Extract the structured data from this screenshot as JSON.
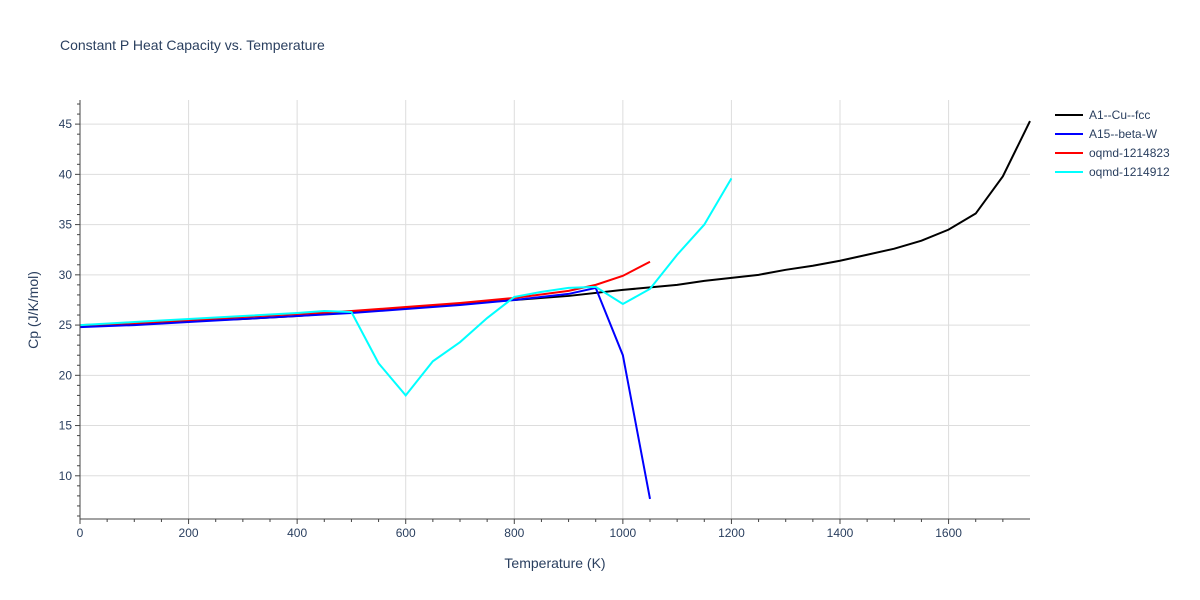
{
  "chart_data": {
    "type": "line",
    "title": "Constant P Heat Capacity vs. Temperature",
    "xlabel": "Temperature (K)",
    "ylabel": "Cp (J/K/mol)",
    "xlim": [
      0,
      1750
    ],
    "ylim": [
      5.7,
      47.4
    ],
    "xticks": [
      0,
      200,
      400,
      600,
      800,
      1000,
      1200,
      1400,
      1600
    ],
    "yticks": [
      10,
      15,
      20,
      25,
      30,
      35,
      40,
      45
    ],
    "grid": true,
    "legend": "right",
    "series": [
      {
        "name": "A1--Cu--fcc",
        "color": "#000000",
        "x": [
          0,
          100,
          200,
          300,
          400,
          500,
          600,
          700,
          800,
          900,
          1000,
          1100,
          1150,
          1200,
          1250,
          1300,
          1350,
          1400,
          1450,
          1500,
          1550,
          1600,
          1650,
          1700,
          1750
        ],
        "y": [
          24.9,
          25.1,
          25.4,
          25.6,
          25.9,
          26.3,
          26.7,
          27.1,
          27.5,
          27.9,
          28.5,
          29.0,
          29.4,
          29.7,
          30.0,
          30.5,
          30.9,
          31.4,
          32.0,
          32.6,
          33.4,
          34.5,
          36.1,
          39.8,
          45.3
        ]
      },
      {
        "name": "A15--beta-W",
        "color": "#0000ff",
        "x": [
          0,
          100,
          200,
          300,
          400,
          500,
          600,
          700,
          800,
          900,
          950,
          1000,
          1050
        ],
        "y": [
          24.8,
          25.0,
          25.3,
          25.6,
          25.9,
          26.2,
          26.6,
          27.0,
          27.5,
          28.1,
          28.7,
          22.0,
          7.7
        ]
      },
      {
        "name": "oqmd-1214823",
        "color": "#ff0000",
        "x": [
          0,
          100,
          200,
          300,
          400,
          500,
          600,
          700,
          800,
          900,
          950,
          1000,
          1050
        ],
        "y": [
          25.0,
          25.2,
          25.5,
          25.8,
          26.1,
          26.4,
          26.8,
          27.2,
          27.7,
          28.4,
          29.0,
          29.9,
          31.3
        ]
      },
      {
        "name": "oqmd-1214912",
        "color": "#00ffff",
        "x": [
          0,
          100,
          200,
          300,
          400,
          450,
          500,
          550,
          600,
          650,
          700,
          750,
          800,
          850,
          900,
          950,
          1000,
          1050,
          1100,
          1150,
          1200
        ],
        "y": [
          25.0,
          25.3,
          25.6,
          25.9,
          26.2,
          26.4,
          26.3,
          21.2,
          18.0,
          21.4,
          23.3,
          25.7,
          27.8,
          28.3,
          28.7,
          28.8,
          27.1,
          28.6,
          32.0,
          35.0,
          39.6
        ]
      }
    ]
  }
}
